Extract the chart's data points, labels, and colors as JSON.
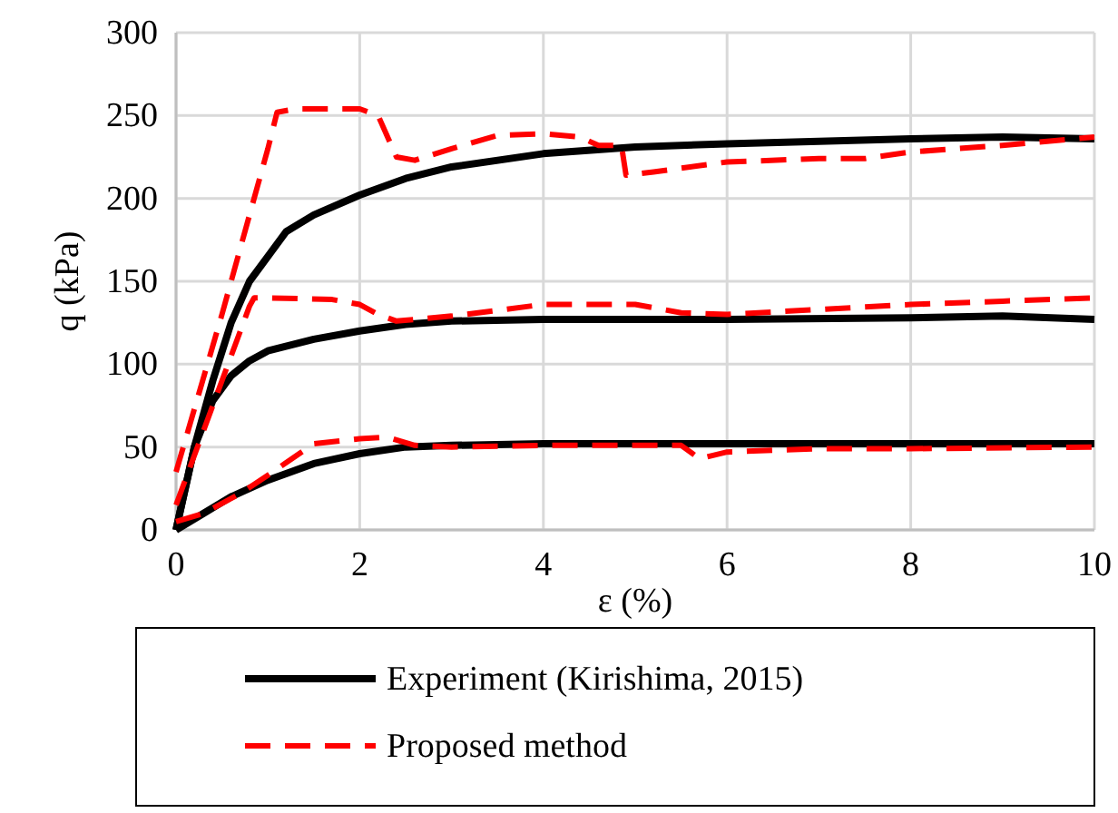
{
  "chart_data": {
    "type": "line",
    "xlabel": "ε (%)",
    "ylabel": "q (kPa)",
    "xlim": [
      0,
      10
    ],
    "xticks": [
      0,
      2,
      4,
      6,
      8,
      10
    ],
    "ylim": [
      0,
      300
    ],
    "yticks": [
      0,
      50,
      100,
      150,
      200,
      250,
      300
    ],
    "grid": true,
    "legend": "bottom",
    "series": [
      {
        "name": "Experiment (Kirishima, 2015)",
        "color": "#000000",
        "line_style": "solid",
        "x": [
          0,
          0.2,
          0.4,
          0.6,
          0.8,
          1.0,
          1.2,
          1.5,
          2,
          2.5,
          3,
          4,
          5,
          6,
          8,
          9,
          10
        ],
        "values": [
          0,
          50,
          90,
          125,
          150,
          165,
          180,
          190,
          202,
          212,
          219,
          227,
          231,
          233,
          236,
          237,
          236
        ]
      },
      {
        "name": "Proposed method",
        "color": "#ff0000",
        "line_style": "dashed",
        "x": [
          0,
          0.5,
          1.0,
          1.1,
          1.3,
          2,
          2.2,
          2.4,
          2.6,
          3,
          3.5,
          4,
          4.4,
          4.6,
          4.85,
          4.9,
          5.2,
          6,
          7,
          7.5,
          8,
          9,
          10
        ],
        "values": [
          35,
          130,
          230,
          252,
          254,
          254,
          250,
          225,
          223,
          230,
          238,
          239,
          237,
          232,
          232,
          214,
          216,
          222,
          224,
          224,
          228,
          232,
          237
        ]
      },
      {
        "color": "#000000",
        "line_style": "solid",
        "x": [
          0,
          0.2,
          0.4,
          0.6,
          0.8,
          1,
          1.5,
          2,
          2.5,
          3,
          4,
          6,
          8,
          9,
          10
        ],
        "values": [
          0,
          50,
          78,
          93,
          102,
          108,
          115,
          120,
          124,
          126,
          127,
          127,
          128,
          129,
          127
        ]
      },
      {
        "color": "#ff0000",
        "line_style": "dashed",
        "x": [
          0,
          0.3,
          0.6,
          0.8,
          0.85,
          1,
          1.7,
          2,
          2.2,
          2.4,
          3,
          4,
          5,
          5.5,
          6,
          7,
          8,
          9,
          10
        ],
        "values": [
          15,
          60,
          105,
          135,
          140,
          140,
          139,
          136,
          130,
          126,
          129,
          136,
          136,
          131,
          130,
          133,
          136,
          138,
          140
        ]
      },
      {
        "color": "#000000",
        "line_style": "solid",
        "x": [
          0,
          0.3,
          0.6,
          1,
          1.5,
          2,
          2.5,
          3,
          4,
          10
        ],
        "values": [
          0,
          10,
          20,
          30,
          40,
          46,
          50,
          51,
          52,
          52
        ]
      },
      {
        "color": "#ff0000",
        "line_style": "dashed",
        "x": [
          0,
          0.3,
          0.7,
          1,
          1.5,
          2,
          2.3,
          2.6,
          3,
          4,
          5.5,
          5.7,
          6,
          7,
          8,
          10
        ],
        "values": [
          5,
          10,
          22,
          33,
          52,
          55,
          56,
          51,
          50,
          51,
          51,
          43,
          47,
          49,
          49,
          50
        ]
      }
    ]
  }
}
